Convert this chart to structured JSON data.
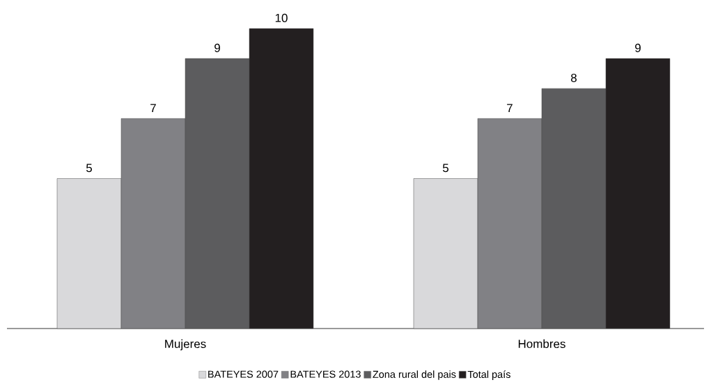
{
  "chart_data": {
    "type": "bar",
    "categories": [
      "Mujeres",
      "Hombres"
    ],
    "series": [
      {
        "name": "BATEYES 2007",
        "color": "#d9d9db",
        "values": [
          5,
          5
        ]
      },
      {
        "name": "BATEYES 2013",
        "color": "#818185",
        "values": [
          7,
          7
        ]
      },
      {
        "name": "Zona rural del pais",
        "color": "#5c5c5e",
        "values": [
          9,
          8
        ]
      },
      {
        "name": "Total país",
        "color": "#231f20",
        "values": [
          10,
          9
        ]
      }
    ],
    "data_labels": true,
    "legend": "bottom"
  }
}
